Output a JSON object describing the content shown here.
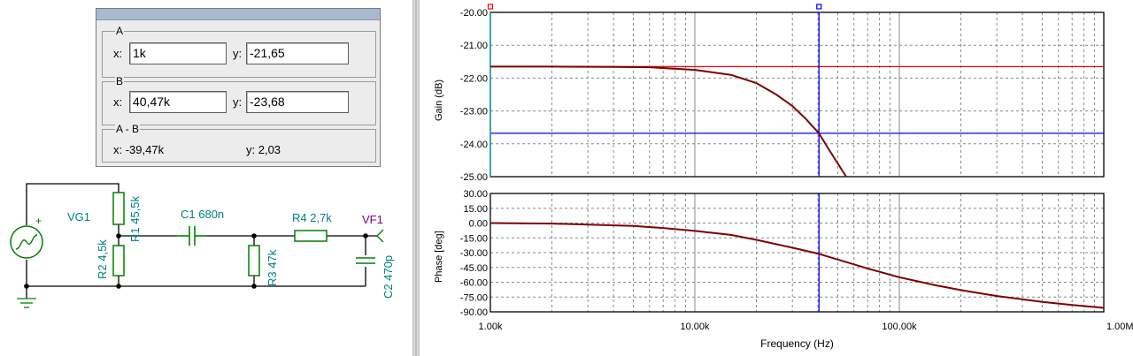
{
  "cursor_panel": {
    "a": {
      "group_label": "A",
      "x_label": "x:",
      "x_value": "1k",
      "y_label": "y:",
      "y_value": "-21,65"
    },
    "b": {
      "group_label": "B",
      "x_label": "x:",
      "x_value": "40,47k",
      "y_label": "y:",
      "y_value": "-23,68"
    },
    "diff": {
      "group_label": "A - B",
      "x_text": "x:  -39,47k",
      "y_text": "y: 2,03"
    }
  },
  "schematic": {
    "vg1": "VG1",
    "r1": "R1 45,5k",
    "r2": "R2 4,5k",
    "c1": "C1 680n",
    "r3": "R3 47k",
    "r4": "R4 2,7k",
    "c2": "C2 470p",
    "vf1": "VF1",
    "plus": "+"
  },
  "colors": {
    "curve": "#800000",
    "cursor_a": "#ff0000",
    "cursor_b": "#0000ff",
    "schematic_wire": "#000000",
    "schematic_part": "#008000",
    "schematic_label": "#008080",
    "probe_label": "#800080"
  },
  "chart_data": [
    {
      "type": "line",
      "ylabel": "Gain (dB)",
      "x_scale": "log",
      "xlim": [
        1000,
        1000000
      ],
      "ylim": [
        -25,
        -20
      ],
      "y_ticks": [
        "-20.00",
        "-21.00",
        "-22.00",
        "-23.00",
        "-24.00",
        "-25.00"
      ],
      "grid": true,
      "series": [
        {
          "x": [
            1000,
            2000,
            4000,
            6000,
            10000,
            15000,
            20000,
            25000,
            30000,
            35000,
            40470,
            45000,
            50000,
            55000
          ],
          "y": [
            -21.65,
            -21.65,
            -21.66,
            -21.67,
            -21.75,
            -21.9,
            -22.15,
            -22.5,
            -22.85,
            -23.25,
            -23.68,
            -24.15,
            -24.6,
            -25.0
          ]
        }
      ],
      "cursor_a": {
        "x": 1000,
        "y": -21.65
      },
      "cursor_b": {
        "x": 40470,
        "y": -23.68
      }
    },
    {
      "type": "line",
      "ylabel": "Phase [deg]",
      "xlabel": "Frequency (Hz)",
      "x_scale": "log",
      "xlim": [
        1000,
        1000000
      ],
      "ylim": [
        -90,
        30
      ],
      "x_ticks": [
        "1.00k",
        "10.00k",
        "100.00k",
        "1.00M"
      ],
      "y_ticks": [
        "30.00",
        "15.00",
        "0.00",
        "-15.00",
        "-30.00",
        "-45.00",
        "-60.00",
        "-75.00",
        "-90.00"
      ],
      "grid": true,
      "series": [
        {
          "x": [
            1000,
            2000,
            3000,
            5000,
            7000,
            10000,
            15000,
            20000,
            30000,
            40000,
            50000,
            70000,
            100000,
            150000,
            200000,
            300000,
            500000,
            700000,
            1000000
          ],
          "y": [
            0,
            -0.5,
            -1.5,
            -3,
            -5,
            -8,
            -12,
            -17,
            -25,
            -31,
            -37,
            -46,
            -55,
            -63,
            -68,
            -74,
            -80,
            -83,
            -86
          ]
        }
      ],
      "cursor_b": {
        "x": 40470
      }
    }
  ]
}
